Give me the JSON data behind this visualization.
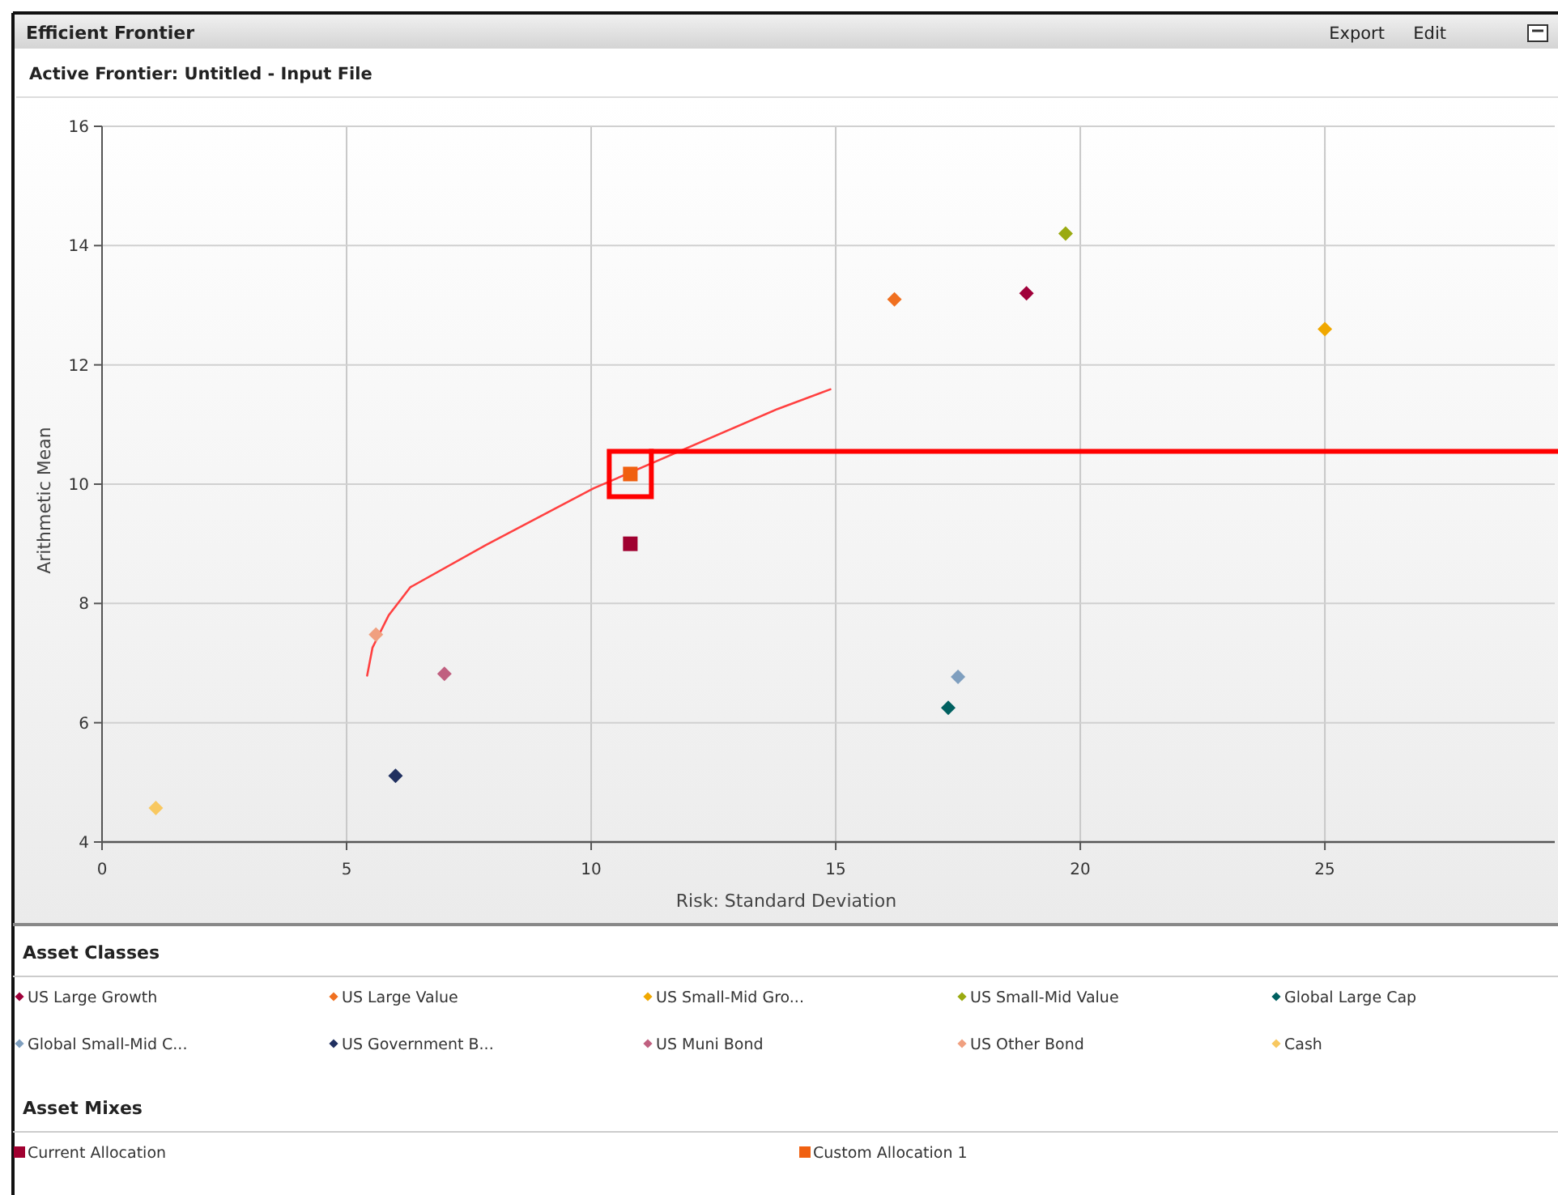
{
  "chart_data": {
    "type": "scatter",
    "title": "Efficient Frontier",
    "subtitle": "Active Frontier: Untitled - Input File",
    "xlabel": "Risk: Standard Deviation",
    "ylabel": "Arithmetic Mean",
    "xlim": [
      0,
      29.7
    ],
    "xticks": [
      0,
      5,
      10,
      15,
      20,
      25
    ],
    "ylim": [
      4,
      16
    ],
    "yticks": [
      4,
      6,
      8,
      10,
      12,
      14,
      16
    ],
    "grid": true,
    "legend": "bottom",
    "marker": "diamond",
    "annotations": [
      "Asset Classes",
      "Asset Mixes",
      "Export",
      "Edit"
    ],
    "ref_lines": [
      {
        "axis": "y",
        "value": 10.55,
        "color": "#ff0000"
      }
    ],
    "series": [
      {
        "type": "line",
        "color": "#ff4040",
        "marker": "none",
        "line_style": "solid",
        "x": [
          5.42,
          5.53,
          5.86,
          6.3,
          7.85,
          10.05,
          13.81,
          14.89
        ],
        "values": [
          6.79,
          7.26,
          7.8,
          8.27,
          8.98,
          9.93,
          11.26,
          11.59
        ]
      },
      {
        "name": "US Large Growth",
        "color": "#a0003a",
        "x": [
          18.9
        ],
        "values": [
          13.2
        ]
      },
      {
        "name": "US Large Value",
        "color": "#f07020",
        "x": [
          16.2
        ],
        "values": [
          13.1
        ]
      },
      {
        "name": "US Small-Mid Gro...",
        "color": "#f0a800",
        "x": [
          25
        ],
        "values": [
          12.6
        ]
      },
      {
        "name": "US Small-Mid Value",
        "color": "#9aaa10",
        "x": [
          19.7
        ],
        "values": [
          14.2
        ]
      },
      {
        "name": "Global Large Cap",
        "color": "#006060",
        "x": [
          17.3
        ],
        "values": [
          6.25
        ]
      },
      {
        "name": "Global Small-Mid C...",
        "color": "#7f9fbf",
        "x": [
          17.5
        ],
        "values": [
          6.77
        ]
      },
      {
        "name": "US Government B...",
        "color": "#203060",
        "x": [
          6
        ],
        "values": [
          5.11
        ]
      },
      {
        "name": "US Muni Bond",
        "color": "#c06080",
        "x": [
          7
        ],
        "values": [
          6.82
        ]
      },
      {
        "name": "US Other Bond",
        "color": "#f0a080",
        "x": [
          5.6
        ],
        "values": [
          7.48
        ]
      },
      {
        "name": "Cash",
        "color": "#f8c860",
        "x": [
          1.1
        ],
        "values": [
          4.57
        ]
      },
      {
        "name": "Current Allocation",
        "color": "#a00030",
        "marker": "square",
        "x": [
          10.8
        ],
        "values": [
          9
        ]
      },
      {
        "name": "Custom Allocation 1",
        "color": "#f06010",
        "marker": "square",
        "x": [
          10.8
        ],
        "values": [
          10.17
        ]
      }
    ]
  }
}
